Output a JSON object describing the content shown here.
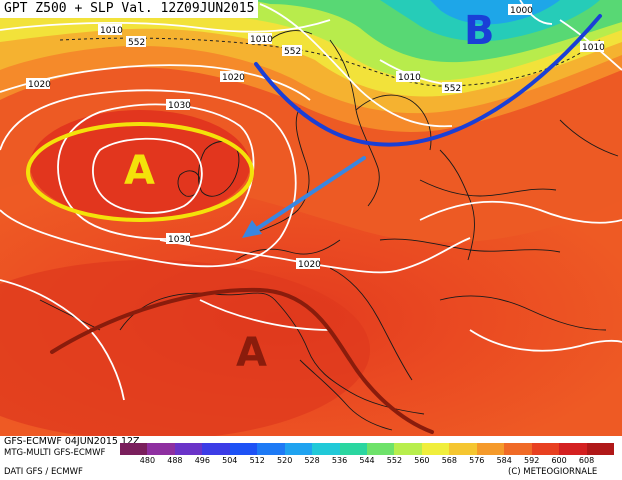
{
  "title": "GPT Z500 + SLP Val. 12Z09JUN2015",
  "footer": {
    "run": "GFS-ECMWF 04JUN2015 12Z",
    "model": "MTG-MULTI GFS-ECMWF",
    "source": "DATI GFS / ECMWF",
    "copyright": "(C) METEOGIORNALE"
  },
  "legend": {
    "values": [
      "480",
      "488",
      "496",
      "504",
      "512",
      "520",
      "528",
      "536",
      "544",
      "552",
      "560",
      "568",
      "576",
      "584",
      "592",
      "600",
      "608"
    ],
    "colors": [
      "#7a1f5c",
      "#8e2fa0",
      "#6a33c8",
      "#3c3ce6",
      "#1e52f5",
      "#1e7af5",
      "#1fa3f0",
      "#21c9d8",
      "#2bd6a0",
      "#6ee26a",
      "#b8ee4d",
      "#f0ee3c",
      "#f5c630",
      "#f59a2a",
      "#f06a26",
      "#e84020",
      "#d42020",
      "#b01818"
    ]
  },
  "map": {
    "isobar_labels": [
      "1000",
      "1010",
      "1010",
      "1010",
      "1010",
      "1020",
      "1020",
      "1020",
      "1030",
      "1030",
      "1020"
    ],
    "z500_labels": [
      "552",
      "552",
      "552"
    ],
    "pressure_centers": [
      {
        "letter": "B",
        "meaning": "low",
        "color": "#1a3fd6"
      },
      {
        "letter": "A",
        "meaning": "high",
        "color": "#f4e20a"
      },
      {
        "letter": "A",
        "meaning": "high",
        "color": "#8a1c0c"
      }
    ]
  }
}
